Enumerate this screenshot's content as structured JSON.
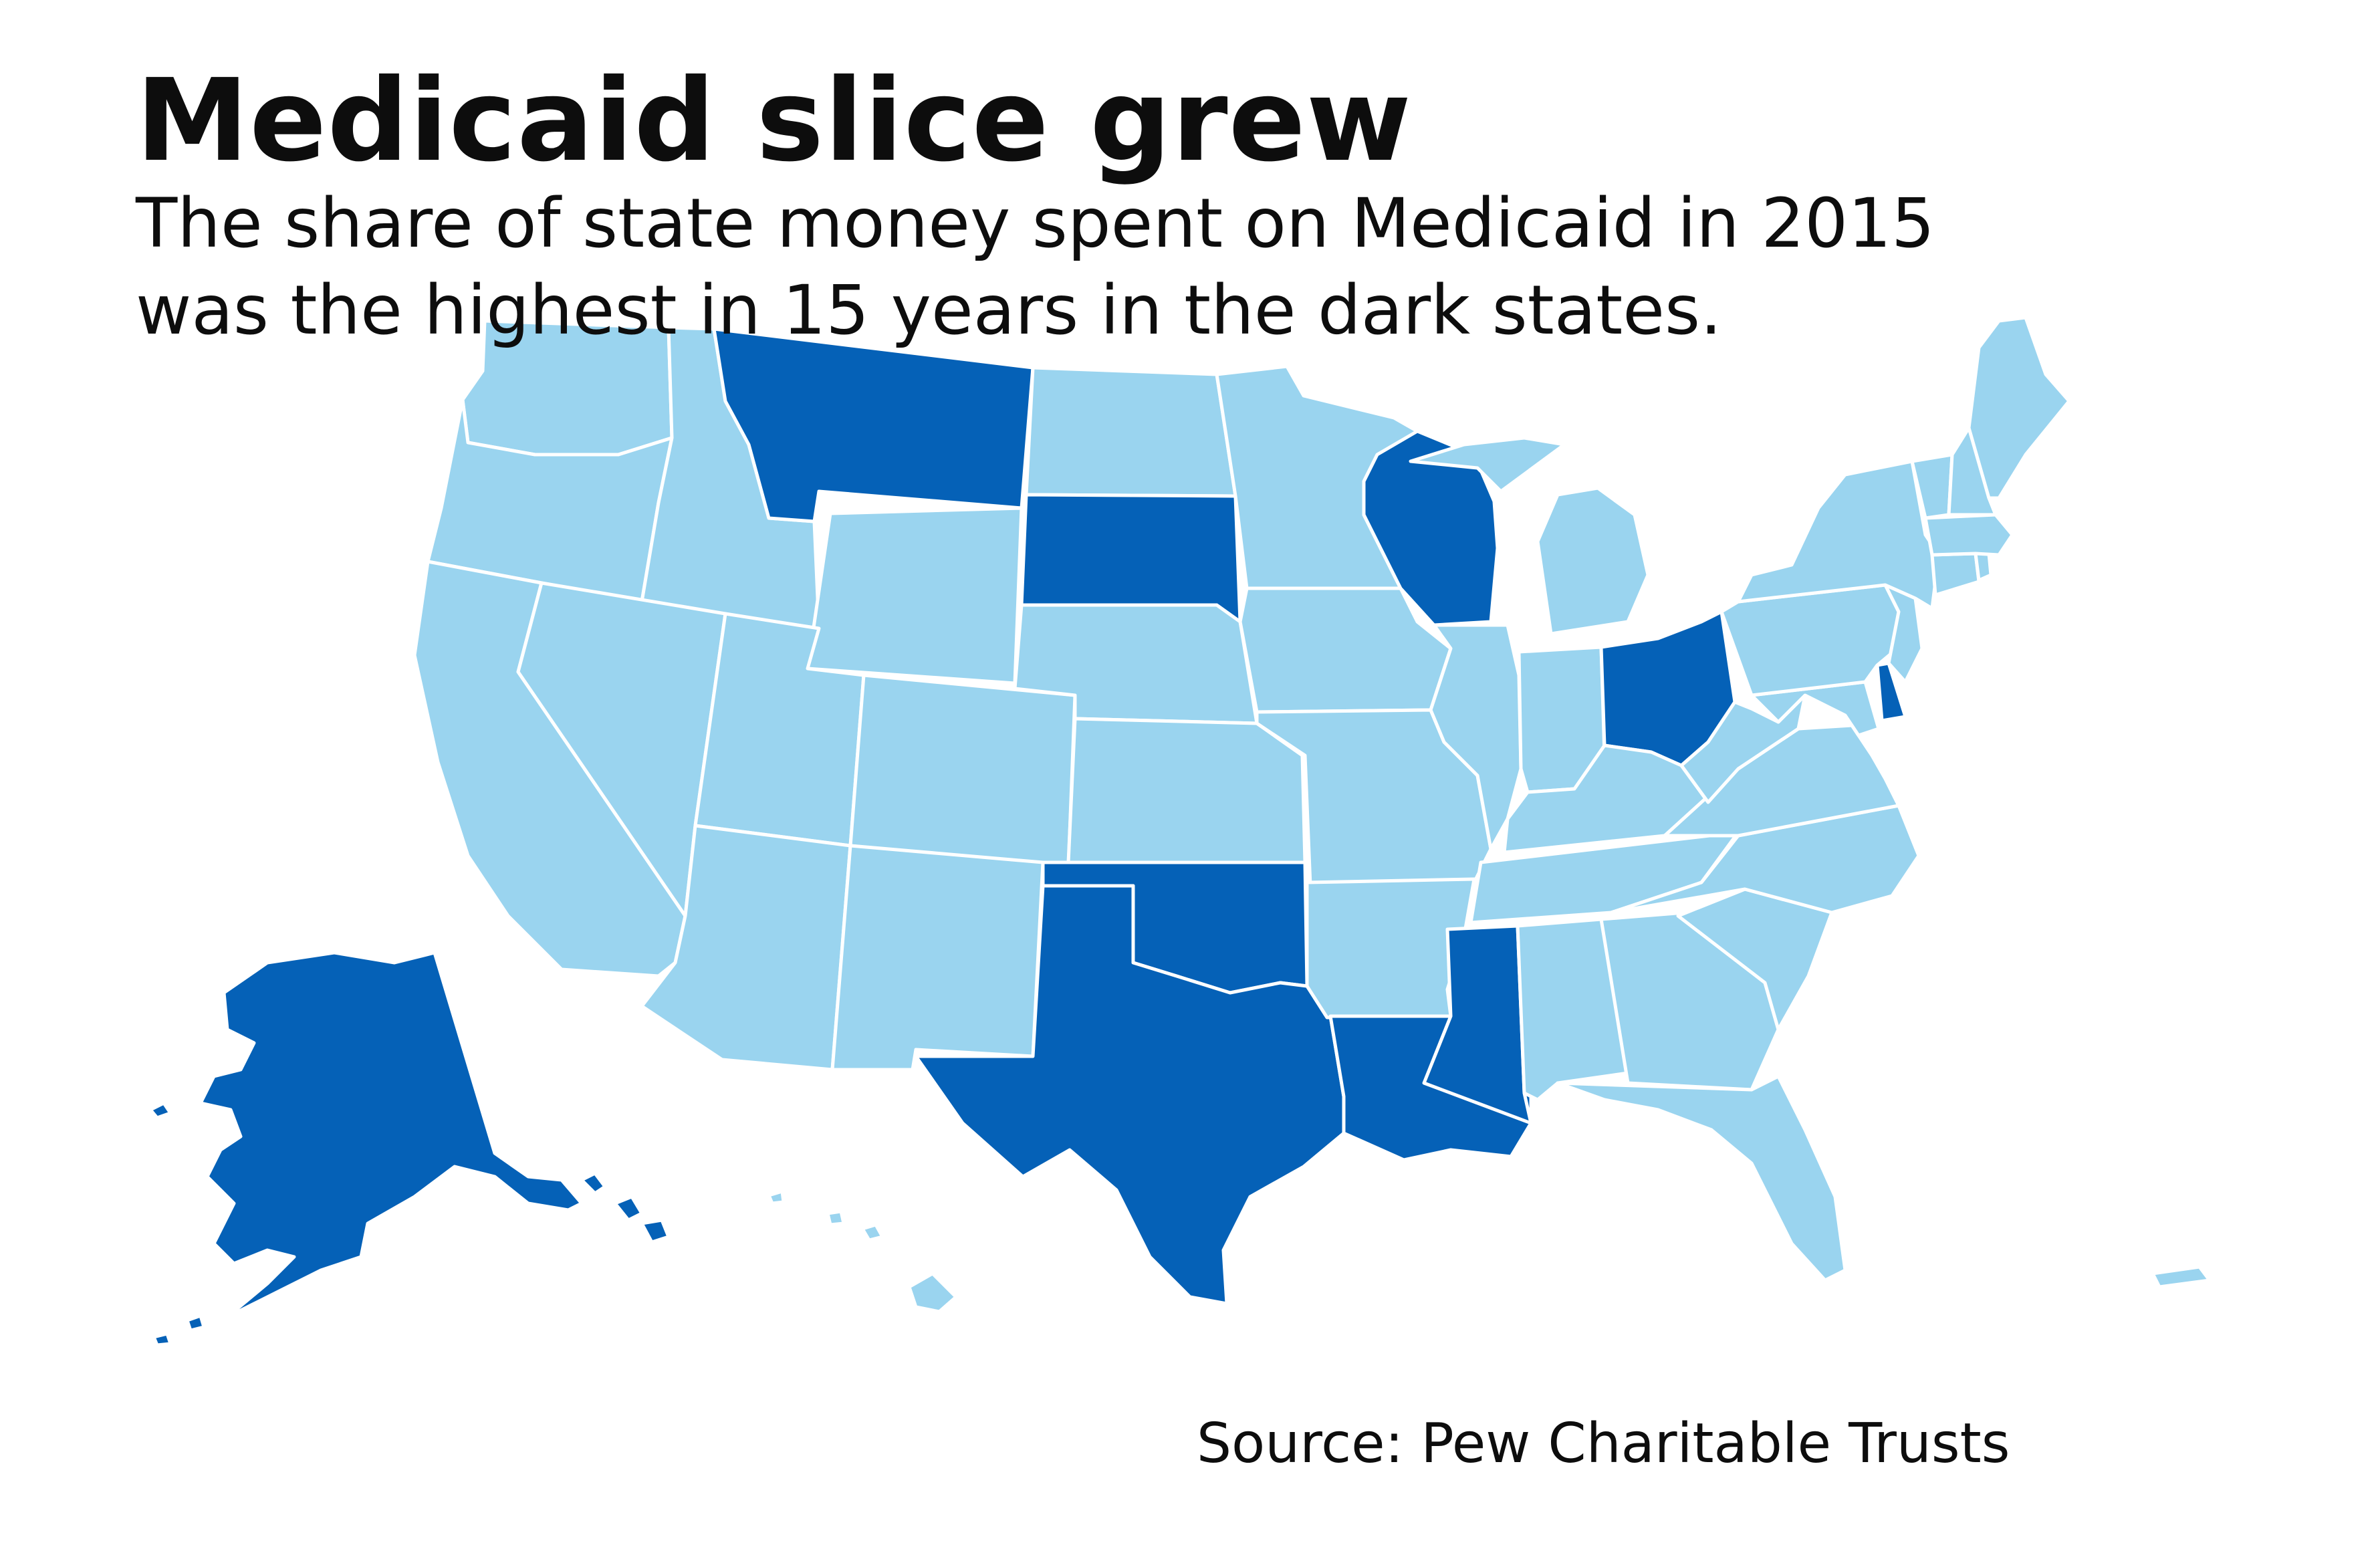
{
  "title": "Medicaid slice grew",
  "subtitle": {
    "line1": "The share of state money spent on Medicaid in 2015",
    "line2": "was the highest in 15 years in the dark states."
  },
  "source": "Source: Pew Charitable Trusts",
  "colors": {
    "highlighted": "#0561b7",
    "other": "#9ad4ef",
    "border": "#ffffff"
  },
  "states": [
    {
      "code": "WA",
      "highlighted": false
    },
    {
      "code": "OR",
      "highlighted": false
    },
    {
      "code": "CA",
      "highlighted": false
    },
    {
      "code": "ID",
      "highlighted": false
    },
    {
      "code": "NV",
      "highlighted": false
    },
    {
      "code": "MT",
      "highlighted": true
    },
    {
      "code": "WY",
      "highlighted": false
    },
    {
      "code": "UT",
      "highlighted": false
    },
    {
      "code": "AZ",
      "highlighted": false
    },
    {
      "code": "CO",
      "highlighted": false
    },
    {
      "code": "NM",
      "highlighted": false
    },
    {
      "code": "ND",
      "highlighted": false
    },
    {
      "code": "SD",
      "highlighted": true
    },
    {
      "code": "NE",
      "highlighted": false
    },
    {
      "code": "KS",
      "highlighted": false
    },
    {
      "code": "OK",
      "highlighted": true
    },
    {
      "code": "TX",
      "highlighted": true
    },
    {
      "code": "MN",
      "highlighted": false
    },
    {
      "code": "IA",
      "highlighted": false
    },
    {
      "code": "MO",
      "highlighted": false
    },
    {
      "code": "AR",
      "highlighted": false
    },
    {
      "code": "LA",
      "highlighted": true
    },
    {
      "code": "WI",
      "highlighted": true
    },
    {
      "code": "IL",
      "highlighted": false
    },
    {
      "code": "MI",
      "highlighted": false
    },
    {
      "code": "IN",
      "highlighted": false
    },
    {
      "code": "OH",
      "highlighted": true
    },
    {
      "code": "KY",
      "highlighted": false
    },
    {
      "code": "TN",
      "highlighted": false
    },
    {
      "code": "MS",
      "highlighted": true
    },
    {
      "code": "AL",
      "highlighted": false
    },
    {
      "code": "GA",
      "highlighted": false
    },
    {
      "code": "FL",
      "highlighted": false
    },
    {
      "code": "SC",
      "highlighted": false
    },
    {
      "code": "NC",
      "highlighted": false
    },
    {
      "code": "VA",
      "highlighted": false
    },
    {
      "code": "WV",
      "highlighted": false
    },
    {
      "code": "MD",
      "highlighted": false
    },
    {
      "code": "DE",
      "highlighted": true
    },
    {
      "code": "PA",
      "highlighted": false
    },
    {
      "code": "NJ",
      "highlighted": false
    },
    {
      "code": "NY",
      "highlighted": false
    },
    {
      "code": "CT",
      "highlighted": false
    },
    {
      "code": "RI",
      "highlighted": false
    },
    {
      "code": "MA",
      "highlighted": false
    },
    {
      "code": "VT",
      "highlighted": false
    },
    {
      "code": "NH",
      "highlighted": false
    },
    {
      "code": "ME",
      "highlighted": false
    },
    {
      "code": "AK",
      "highlighted": true
    },
    {
      "code": "HI",
      "highlighted": false
    },
    {
      "code": "PR",
      "highlighted": false
    }
  ]
}
